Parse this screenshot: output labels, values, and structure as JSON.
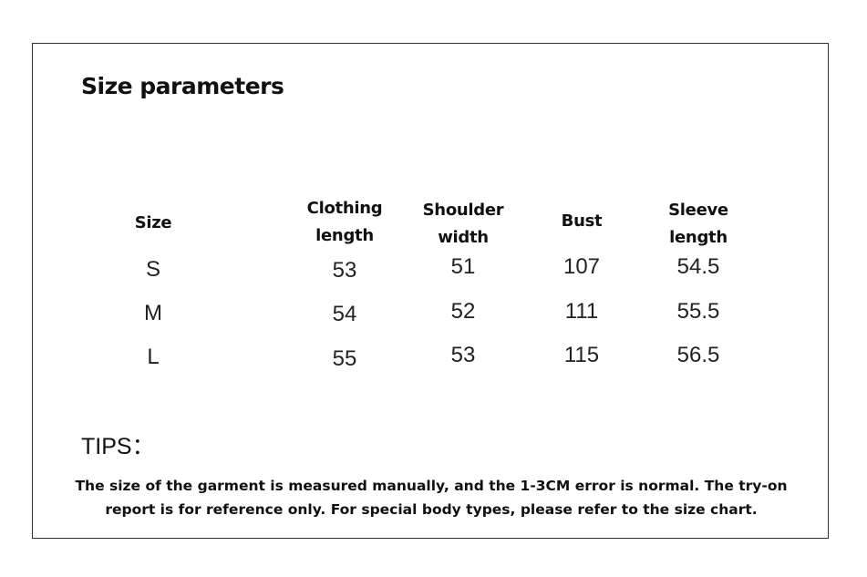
{
  "title": "Size parameters",
  "table": {
    "headers": [
      "Size",
      "Clothing\nlength",
      "Shoulder\nwidth",
      "Bust",
      "Sleeve\nlength"
    ],
    "rows": [
      [
        "S",
        "53",
        "51",
        "107",
        "54.5"
      ],
      [
        "M",
        "54",
        "52",
        "111",
        "55.5"
      ],
      [
        "L",
        "55",
        "53",
        "115",
        "56.5"
      ]
    ]
  },
  "tips": {
    "label": "TIPS：",
    "text": "The size of the garment is measured manually, and the 1-3CM error is normal. The try-on report is for reference only. For special body types, please refer to the size chart."
  }
}
